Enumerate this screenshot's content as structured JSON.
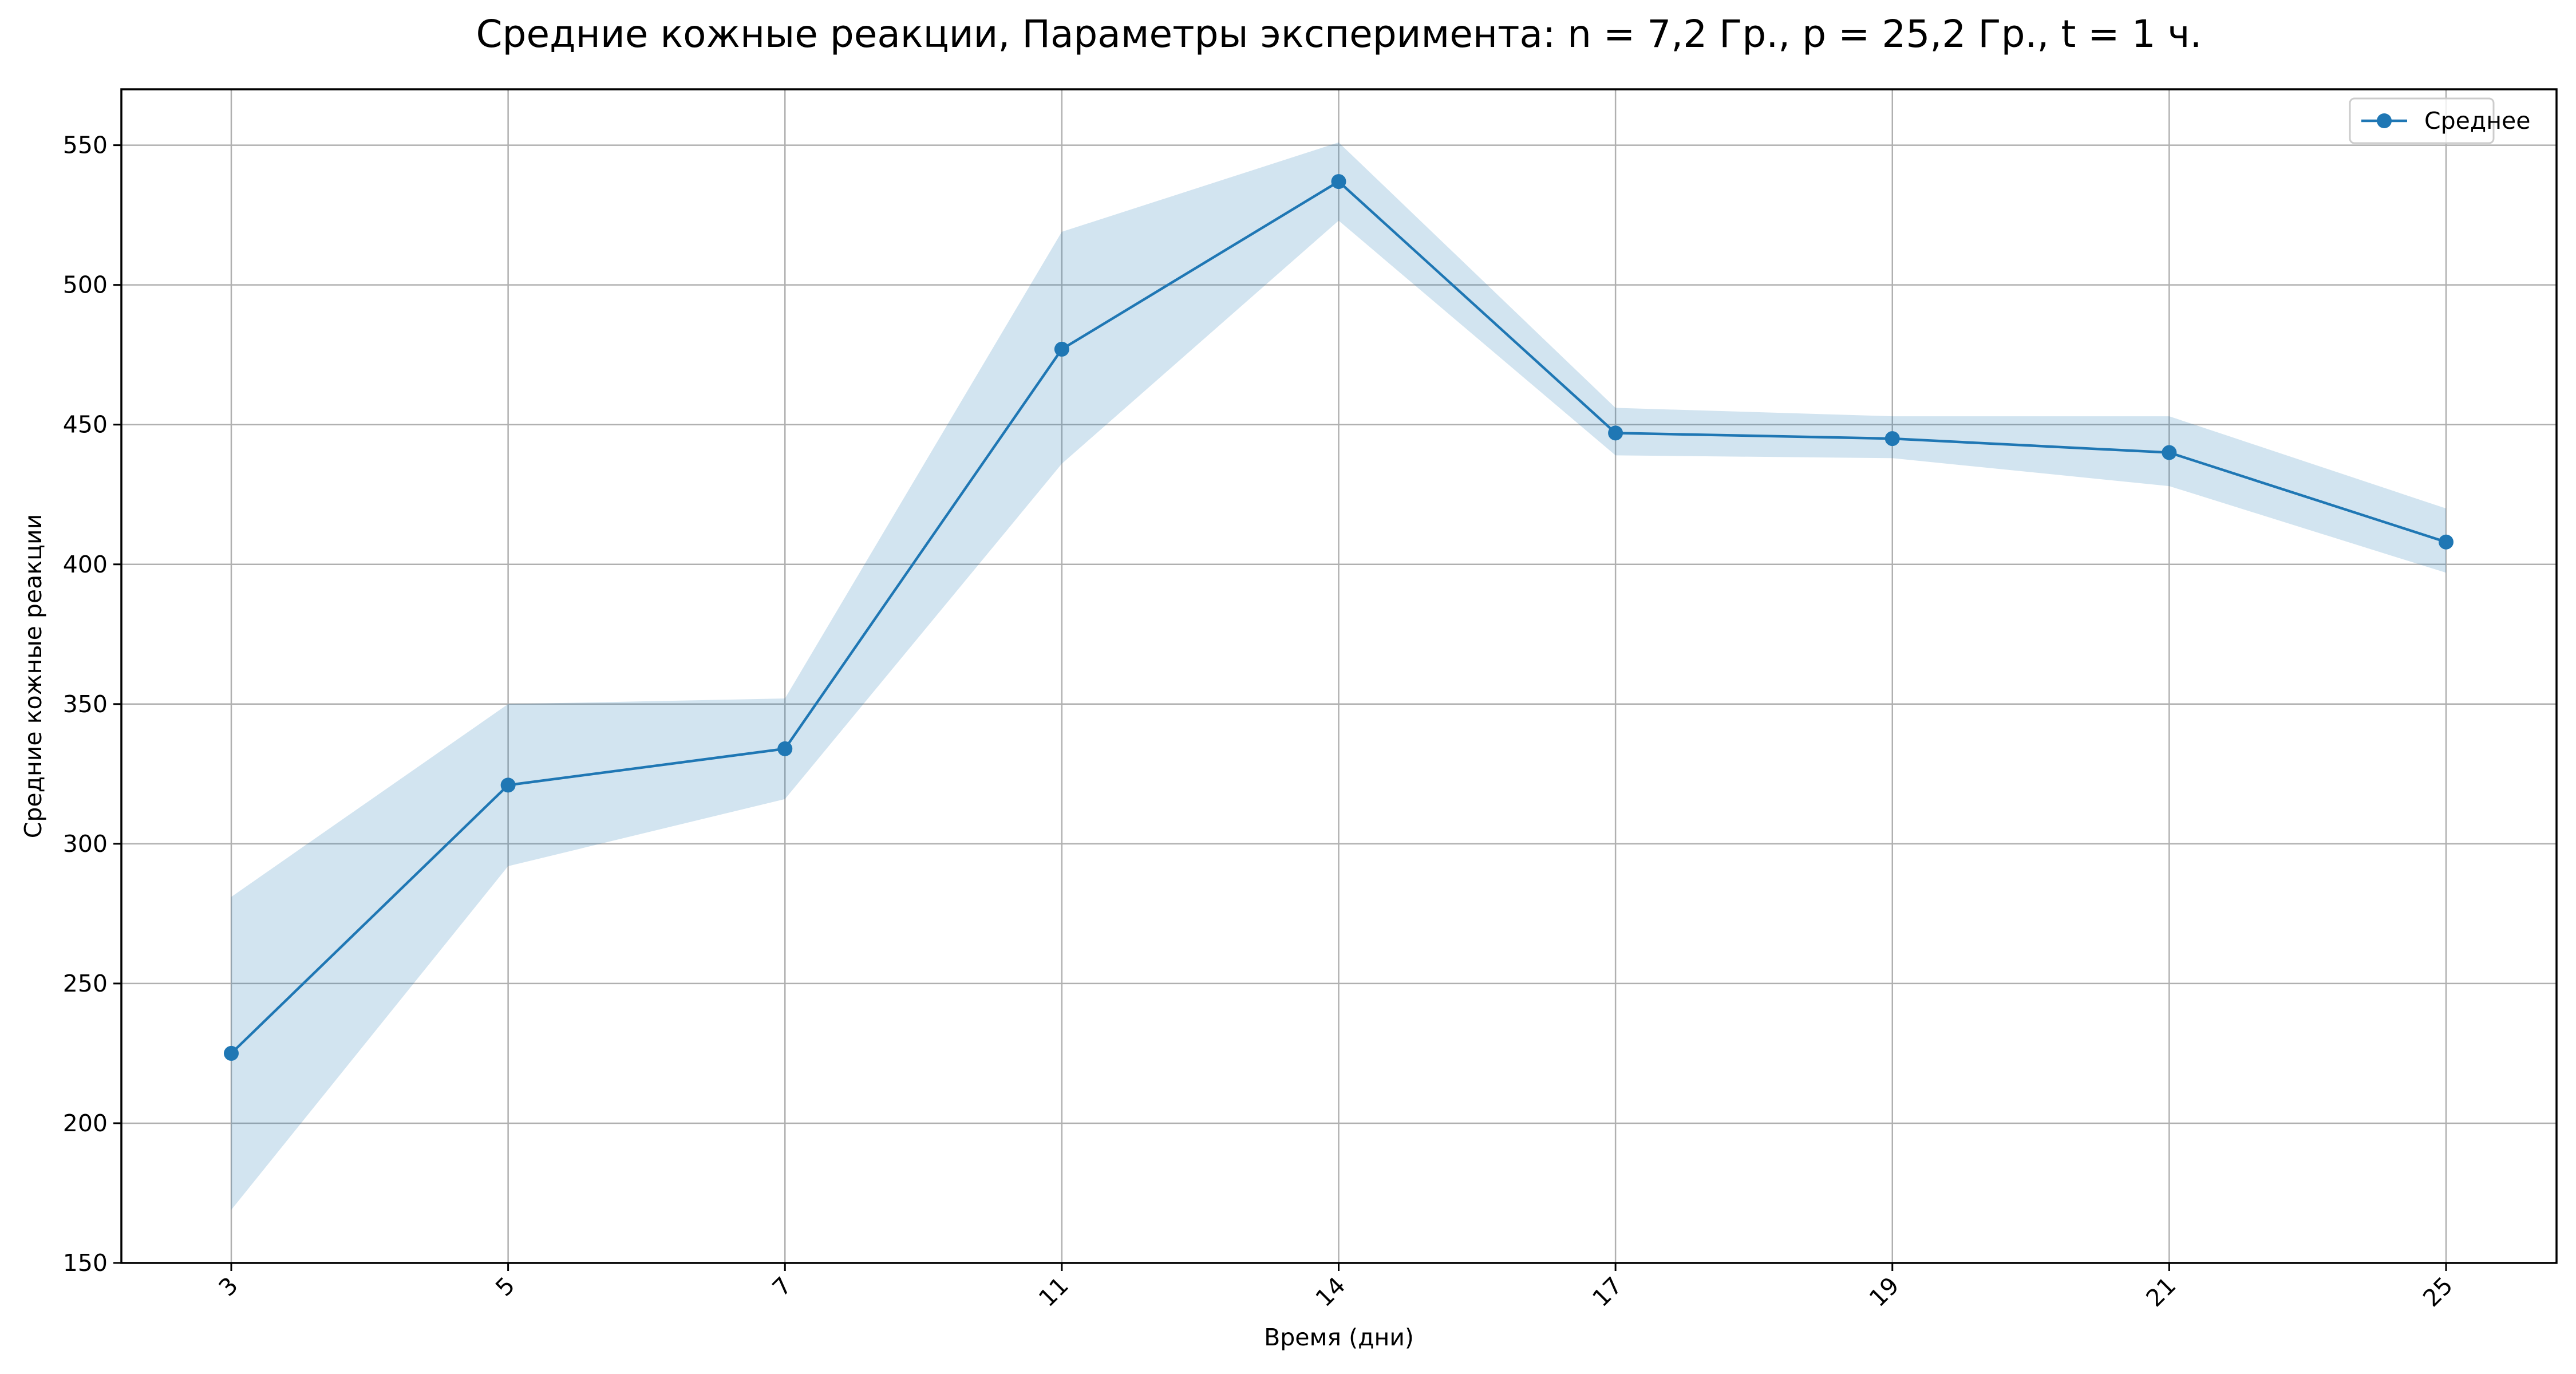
{
  "chart_data": {
    "type": "line",
    "title": "Средние кожные реакции, Параметры эксперимента: n = 7,2 Гр., p = 25,2 Гр., t = 1 ч.",
    "xlabel": "Время (дни)",
    "ylabel": "Средние кожные реакции",
    "categories": [
      "3",
      "5",
      "7",
      "11",
      "14",
      "17",
      "19",
      "21",
      "25"
    ],
    "ylim": [
      150,
      570
    ],
    "yticks": [
      150,
      200,
      250,
      300,
      350,
      400,
      450,
      500,
      550
    ],
    "xtick_rotation": 45,
    "grid": true,
    "legend_position": "top-right",
    "series": [
      {
        "name": "Среднее",
        "color": "#1f77b4",
        "marker": "circle",
        "values": [
          225,
          321,
          334,
          477,
          537,
          447,
          445,
          440,
          408
        ],
        "band_lower": [
          169,
          292,
          316,
          436,
          523,
          439,
          438,
          428,
          397
        ],
        "band_upper": [
          281,
          350,
          352,
          519,
          551,
          456,
          453,
          453,
          420
        ]
      }
    ],
    "colors": {
      "line": "#1f77b4",
      "band": "#1f77b4",
      "grid": "#b0b0b0",
      "axes": "#000000"
    }
  }
}
